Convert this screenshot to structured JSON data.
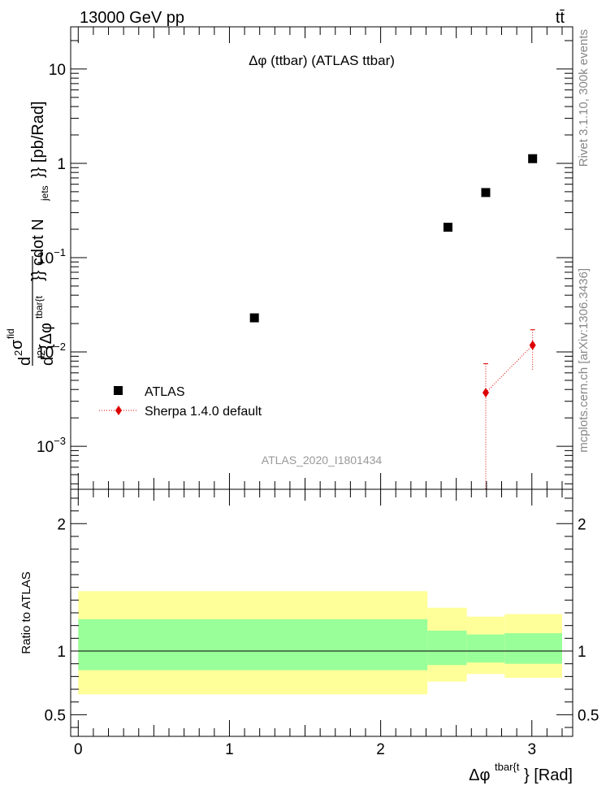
{
  "chart_data": [
    {
      "type": "scatter",
      "panel": "main",
      "header_left": "13000 GeV pp",
      "header_right": "tt̄",
      "title": "Δφ (ttbar) (ATLAS ttbar)",
      "ylabel_parts": {
        "d1": "d",
        "sup2": "2",
        "sigma": "σ",
        "fid": "fid",
        "d2": "d",
        "sup2b": "2",
        "brace": "{Δφ",
        "tbart": "tbar{t",
        "cdot": "}} cdot N",
        "jets": "jets",
        "tail": "}} [pb/Rad]"
      },
      "yscale": "log",
      "ylim": [
        0.00035,
        28
      ],
      "xlim": [
        -0.05,
        3.27
      ],
      "yticks": [
        {
          "value": 10,
          "label": "10"
        },
        {
          "value": 1,
          "label": "1"
        },
        {
          "value": 0.1,
          "base": "10",
          "exp": "−1"
        },
        {
          "value": 0.01,
          "base": "10",
          "exp": "−2"
        },
        {
          "value": 0.001,
          "base": "10",
          "exp": "−3"
        }
      ],
      "series": [
        {
          "name": "ATLAS",
          "marker": "square",
          "color": "#000000",
          "points": [
            {
              "x": 1.165,
              "y": 0.023
            },
            {
              "x": 2.445,
              "y": 0.21
            },
            {
              "x": 2.695,
              "y": 0.49
            },
            {
              "x": 3.005,
              "y": 1.12
            }
          ]
        },
        {
          "name": "Sherpa 1.4.0 default",
          "marker": "diamond",
          "color": "#dd0000",
          "points": [
            {
              "x": 2.695,
              "y": 0.0037,
              "ylo": 0.00035,
              "yhi": 0.0075
            },
            {
              "x": 3.005,
              "y": 0.0118,
              "ylo": 0.0065,
              "yhi": 0.0172
            }
          ]
        }
      ],
      "legend_position": "bottom-left",
      "watermark": "ATLAS_2020_I1801434",
      "side_label_top": "Rivet 3.1.10,  300k events",
      "side_label_bottom": "mcplots.cern.ch [arXiv:1306.3436]"
    },
    {
      "type": "area",
      "panel": "ratio",
      "ylabel": "Ratio to ATLAS",
      "xlabel": {
        "prefix": "Δφ",
        "sup": "tbar{t",
        "suffix": "} [Rad]"
      },
      "ylim": [
        0.33,
        2.27
      ],
      "xlim": [
        -0.05,
        3.27
      ],
      "yticks": [
        {
          "value": 0.5,
          "label": "0.5"
        },
        {
          "value": 1,
          "label": "1"
        },
        {
          "value": 2,
          "label": "2"
        }
      ],
      "xticks": [
        {
          "value": 0,
          "label": "0"
        },
        {
          "value": 1,
          "label": "1"
        },
        {
          "value": 2,
          "label": "2"
        },
        {
          "value": 3,
          "label": "3"
        }
      ],
      "bands": [
        {
          "xlo": 0.0,
          "xhi": 2.31,
          "inner": [
            0.85,
            1.25
          ],
          "outer": [
            0.66,
            1.47
          ]
        },
        {
          "xlo": 2.31,
          "xhi": 2.57,
          "inner": [
            0.89,
            1.16
          ],
          "outer": [
            0.76,
            1.34
          ]
        },
        {
          "xlo": 2.57,
          "xhi": 2.82,
          "inner": [
            0.91,
            1.13
          ],
          "outer": [
            0.82,
            1.27
          ]
        },
        {
          "xlo": 2.82,
          "xhi": 3.2,
          "inner": [
            0.9,
            1.14
          ],
          "outer": [
            0.79,
            1.29
          ]
        }
      ],
      "inner_color": "#99ff99",
      "outer_color": "#ffff99",
      "reference_line": 1
    }
  ]
}
